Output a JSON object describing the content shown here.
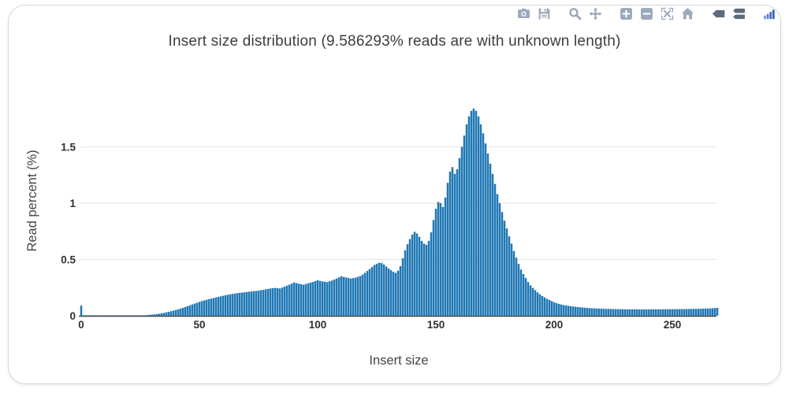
{
  "modebar": {
    "icons": [
      {
        "name": "camera-icon",
        "title": "Download plot as a png"
      },
      {
        "name": "save-icon",
        "title": "Save and edit plot"
      },
      {
        "name": "zoom-icon",
        "title": "Zoom"
      },
      {
        "name": "pan-icon",
        "title": "Pan"
      },
      {
        "name": "zoom-in-icon",
        "title": "Zoom in"
      },
      {
        "name": "zoom-out-icon",
        "title": "Zoom out"
      },
      {
        "name": "autoscale-icon",
        "title": "Autoscale"
      },
      {
        "name": "home-icon",
        "title": "Reset axes"
      },
      {
        "name": "hover-closest-icon",
        "title": "Show closest data on hover"
      },
      {
        "name": "hover-compare-icon",
        "title": "Compare data on hover"
      },
      {
        "name": "plotly-logo-icon",
        "title": "Produced with Plotly"
      }
    ],
    "icon_color": "#9aa8ba",
    "active_icon_color": "#5c6c7c",
    "logo_colors": [
      "#7896d2",
      "#5f82c7",
      "#4a6fbb",
      "#3a60b0"
    ]
  },
  "chart_data": {
    "type": "bar",
    "title": "Insert size distribution (9.586293% reads are with unknown length)",
    "xlabel": "Insert size",
    "ylabel": "Read percent (%)",
    "x_ticks": [
      0,
      50,
      100,
      150,
      200,
      250
    ],
    "y_ticks": [
      0,
      0.5,
      1,
      1.5
    ],
    "y_tick_labels": [
      "0",
      "0.5",
      "1",
      "1.5"
    ],
    "xlim": [
      0,
      269
    ],
    "ylim": [
      0,
      1.93
    ],
    "grid": true,
    "legend": false,
    "bin_width": 1,
    "peak": {
      "x": 166,
      "y": 1.84
    },
    "points": [
      [
        0,
        0.09
      ],
      [
        1,
        0.004
      ],
      [
        27,
        0.004
      ],
      [
        29,
        0.008
      ],
      [
        31,
        0.012
      ],
      [
        33,
        0.017
      ],
      [
        35,
        0.025
      ],
      [
        37,
        0.035
      ],
      [
        39,
        0.045
      ],
      [
        41,
        0.057
      ],
      [
        43,
        0.07
      ],
      [
        45,
        0.085
      ],
      [
        47,
        0.1
      ],
      [
        49,
        0.115
      ],
      [
        51,
        0.13
      ],
      [
        53,
        0.142
      ],
      [
        55,
        0.152
      ],
      [
        57,
        0.162
      ],
      [
        59,
        0.172
      ],
      [
        61,
        0.182
      ],
      [
        63,
        0.19
      ],
      [
        65,
        0.197
      ],
      [
        67,
        0.203
      ],
      [
        69,
        0.208
      ],
      [
        71,
        0.213
      ],
      [
        73,
        0.218
      ],
      [
        75,
        0.223
      ],
      [
        77,
        0.23
      ],
      [
        79,
        0.238
      ],
      [
        80,
        0.242
      ],
      [
        82,
        0.247
      ],
      [
        84,
        0.242
      ],
      [
        86,
        0.258
      ],
      [
        88,
        0.275
      ],
      [
        90,
        0.295
      ],
      [
        92,
        0.285
      ],
      [
        94,
        0.275
      ],
      [
        96,
        0.288
      ],
      [
        98,
        0.3
      ],
      [
        100,
        0.315
      ],
      [
        102,
        0.305
      ],
      [
        104,
        0.298
      ],
      [
        106,
        0.312
      ],
      [
        108,
        0.33
      ],
      [
        110,
        0.35
      ],
      [
        112,
        0.34
      ],
      [
        114,
        0.33
      ],
      [
        116,
        0.338
      ],
      [
        118,
        0.352
      ],
      [
        120,
        0.38
      ],
      [
        122,
        0.415
      ],
      [
        124,
        0.45
      ],
      [
        126,
        0.47
      ],
      [
        127,
        0.468
      ],
      [
        128,
        0.455
      ],
      [
        130,
        0.42
      ],
      [
        132,
        0.39
      ],
      [
        133,
        0.38
      ],
      [
        134,
        0.4
      ],
      [
        135,
        0.44
      ],
      [
        136,
        0.51
      ],
      [
        137,
        0.58
      ],
      [
        138,
        0.635
      ],
      [
        139,
        0.68
      ],
      [
        140,
        0.72
      ],
      [
        141,
        0.745
      ],
      [
        142,
        0.73
      ],
      [
        143,
        0.7
      ],
      [
        144,
        0.665
      ],
      [
        145,
        0.64
      ],
      [
        146,
        0.63
      ],
      [
        147,
        0.665
      ],
      [
        148,
        0.74
      ],
      [
        149,
        0.85
      ],
      [
        150,
        0.95
      ],
      [
        151,
        1.01
      ],
      [
        152,
        1.0
      ],
      [
        153,
        0.965
      ],
      [
        154,
        1.05
      ],
      [
        155,
        1.18
      ],
      [
        156,
        1.28
      ],
      [
        157,
        1.32
      ],
      [
        158,
        1.26
      ],
      [
        159,
        1.3
      ],
      [
        160,
        1.4
      ],
      [
        161,
        1.5
      ],
      [
        162,
        1.6
      ],
      [
        163,
        1.7
      ],
      [
        164,
        1.77
      ],
      [
        165,
        1.82
      ],
      [
        166,
        1.84
      ],
      [
        167,
        1.82
      ],
      [
        168,
        1.77
      ],
      [
        169,
        1.7
      ],
      [
        170,
        1.62
      ],
      [
        171,
        1.53
      ],
      [
        172,
        1.44
      ],
      [
        173,
        1.35
      ],
      [
        174,
        1.26
      ],
      [
        175,
        1.17
      ],
      [
        176,
        1.08
      ],
      [
        177,
        1.0
      ],
      [
        178,
        0.92
      ],
      [
        179,
        0.845
      ],
      [
        180,
        0.775
      ],
      [
        181,
        0.705
      ],
      [
        182,
        0.64
      ],
      [
        183,
        0.575
      ],
      [
        184,
        0.515
      ],
      [
        185,
        0.46
      ],
      [
        186,
        0.41
      ],
      [
        187,
        0.37
      ],
      [
        188,
        0.335
      ],
      [
        189,
        0.3
      ],
      [
        190,
        0.27
      ],
      [
        191,
        0.247
      ],
      [
        192,
        0.227
      ],
      [
        193,
        0.208
      ],
      [
        194,
        0.19
      ],
      [
        195,
        0.175
      ],
      [
        196,
        0.162
      ],
      [
        197,
        0.15
      ],
      [
        198,
        0.14
      ],
      [
        199,
        0.13
      ],
      [
        200,
        0.12
      ],
      [
        202,
        0.105
      ],
      [
        204,
        0.095
      ],
      [
        206,
        0.088
      ],
      [
        208,
        0.082
      ],
      [
        210,
        0.077
      ],
      [
        213,
        0.071
      ],
      [
        216,
        0.066
      ],
      [
        220,
        0.062
      ],
      [
        225,
        0.059
      ],
      [
        230,
        0.057
      ],
      [
        235,
        0.056
      ],
      [
        240,
        0.056
      ],
      [
        245,
        0.057
      ],
      [
        250,
        0.058
      ],
      [
        255,
        0.059
      ],
      [
        260,
        0.061
      ],
      [
        264,
        0.063
      ],
      [
        267,
        0.066
      ],
      [
        269,
        0.07
      ]
    ]
  },
  "colors": {
    "bar": "#1f77b4",
    "grid": "#e7e7e7",
    "axis_line": "#444444",
    "tick_label": "#2f2f2f",
    "title": "#3d3d3d",
    "card_border": "#d6d6d6"
  }
}
